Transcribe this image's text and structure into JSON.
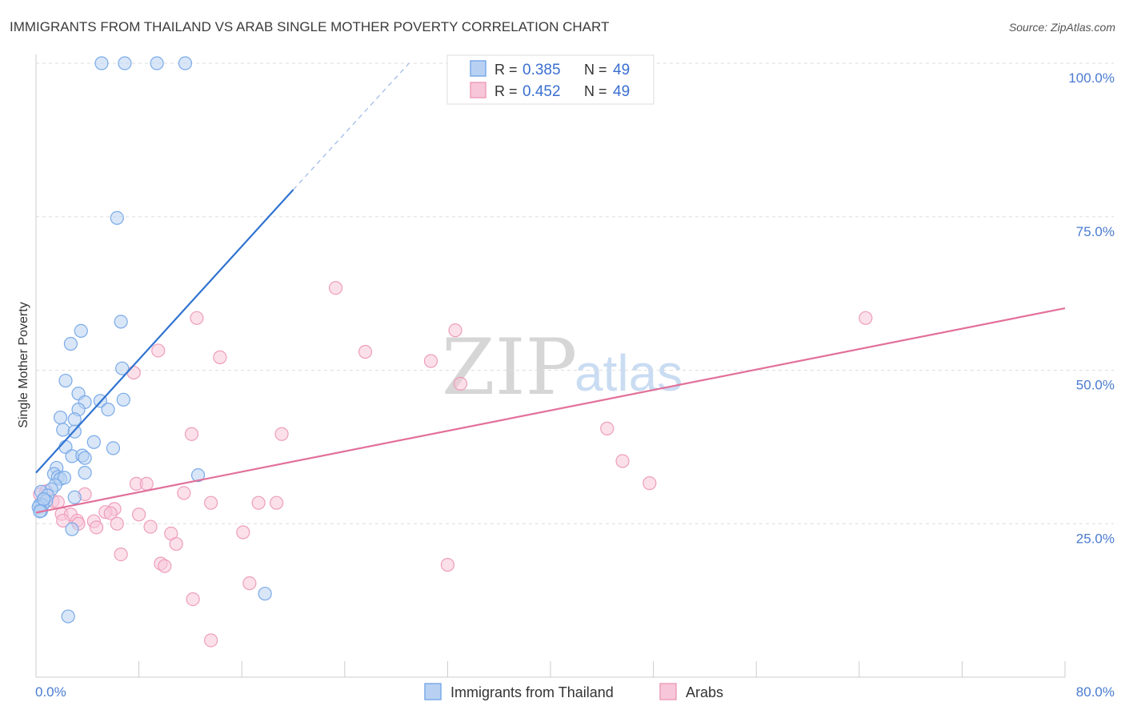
{
  "chart_data": {
    "type": "scatter",
    "title": "IMMIGRANTS FROM THAILAND VS ARAB SINGLE MOTHER POVERTY CORRELATION CHART",
    "source": "Source: ZipAtlas.com",
    "xlabel": "",
    "ylabel": "Single Mother Poverty",
    "xlim": [
      0,
      80
    ],
    "ylim": [
      0,
      100
    ],
    "x_tick_labels": {
      "left": "0.0%",
      "right": "80.0%"
    },
    "y_tick_labels": [
      "100.0%",
      "75.0%",
      "50.0%",
      "25.0%"
    ],
    "y_tick_values": [
      100,
      75,
      50,
      25
    ],
    "watermark": {
      "zip": "ZIP",
      "atlas": "atlas"
    },
    "legend": {
      "r_label": "R = ",
      "n_label": "N = ",
      "entries": [
        {
          "r": "0.385",
          "n": "49"
        },
        {
          "r": "0.452",
          "n": "49"
        }
      ]
    },
    "series": [
      {
        "name": "Immigrants from Thailand",
        "color": "#7aaae8",
        "fill": "#b8d1f3",
        "line_color": "#3073d0",
        "trend": {
          "x0": 0,
          "y0": 33.3,
          "x1": 20,
          "y1": 79.4,
          "dash_x1": 29,
          "dash_y1": 100
        },
        "points": [
          [
            5.1,
            100
          ],
          [
            6.9,
            100
          ],
          [
            9.4,
            100
          ],
          [
            11.6,
            100
          ],
          [
            6.3,
            74.8
          ],
          [
            6.6,
            57.9
          ],
          [
            3.5,
            56.4
          ],
          [
            2.7,
            54.3
          ],
          [
            6.7,
            50.3
          ],
          [
            2.3,
            48.3
          ],
          [
            3.3,
            46.2
          ],
          [
            5.0,
            45.0
          ],
          [
            6.8,
            45.2
          ],
          [
            3.8,
            44.8
          ],
          [
            3.3,
            43.6
          ],
          [
            5.6,
            43.6
          ],
          [
            1.9,
            42.3
          ],
          [
            3.0,
            42.0
          ],
          [
            2.1,
            40.3
          ],
          [
            3.0,
            40.0
          ],
          [
            4.5,
            38.3
          ],
          [
            2.3,
            37.5
          ],
          [
            6.0,
            37.3
          ],
          [
            2.8,
            36.0
          ],
          [
            3.6,
            36.1
          ],
          [
            3.8,
            35.7
          ],
          [
            3.8,
            33.3
          ],
          [
            12.6,
            32.9
          ],
          [
            1.6,
            34.1
          ],
          [
            1.4,
            33.1
          ],
          [
            1.7,
            32.6
          ],
          [
            1.9,
            32.3
          ],
          [
            2.2,
            32.5
          ],
          [
            1.5,
            31.3
          ],
          [
            1.2,
            30.6
          ],
          [
            0.4,
            30.2
          ],
          [
            0.9,
            29.6
          ],
          [
            3.0,
            29.3
          ],
          [
            0.6,
            28.9
          ],
          [
            0.8,
            28.7
          ],
          [
            0.3,
            28.1
          ],
          [
            0.5,
            28.0
          ],
          [
            0.2,
            27.7
          ],
          [
            0.4,
            27.1
          ],
          [
            0.3,
            27.0
          ],
          [
            2.8,
            24.1
          ],
          [
            17.8,
            13.6
          ],
          [
            2.5,
            9.9
          ],
          [
            0.6,
            29.0
          ]
        ]
      },
      {
        "name": "Arabs",
        "color": "#ee9dbb",
        "fill": "#f7c6d8",
        "line_color": "#e2709a",
        "trend": {
          "x0": 0,
          "y0": 26.8,
          "x1": 80,
          "y1": 60.1
        },
        "points": [
          [
            23.3,
            63.4
          ],
          [
            64.5,
            58.5
          ],
          [
            12.5,
            58.5
          ],
          [
            32.6,
            56.5
          ],
          [
            9.5,
            53.2
          ],
          [
            25.6,
            53.0
          ],
          [
            14.3,
            52.1
          ],
          [
            30.7,
            51.5
          ],
          [
            7.6,
            49.6
          ],
          [
            33.0,
            47.8
          ],
          [
            44.4,
            40.5
          ],
          [
            12.1,
            39.6
          ],
          [
            19.1,
            39.6
          ],
          [
            45.6,
            35.2
          ],
          [
            47.7,
            31.6
          ],
          [
            7.8,
            31.5
          ],
          [
            8.6,
            31.5
          ],
          [
            11.5,
            30.0
          ],
          [
            3.8,
            29.8
          ],
          [
            1.3,
            28.7
          ],
          [
            1.7,
            28.5
          ],
          [
            13.6,
            28.4
          ],
          [
            17.3,
            28.4
          ],
          [
            18.7,
            28.4
          ],
          [
            6.1,
            27.4
          ],
          [
            5.4,
            26.9
          ],
          [
            5.8,
            26.7
          ],
          [
            2.0,
            26.6
          ],
          [
            8.0,
            26.5
          ],
          [
            2.7,
            26.5
          ],
          [
            2.1,
            25.5
          ],
          [
            3.2,
            25.5
          ],
          [
            4.5,
            25.4
          ],
          [
            6.3,
            25.0
          ],
          [
            3.3,
            25.0
          ],
          [
            4.7,
            24.4
          ],
          [
            8.9,
            24.5
          ],
          [
            16.1,
            23.6
          ],
          [
            10.5,
            23.4
          ],
          [
            10.9,
            21.7
          ],
          [
            6.6,
            20.0
          ],
          [
            9.7,
            18.5
          ],
          [
            10.0,
            18.1
          ],
          [
            32.0,
            18.3
          ],
          [
            16.6,
            15.3
          ],
          [
            12.2,
            12.7
          ],
          [
            13.6,
            6.0
          ],
          [
            0.3,
            29.8
          ],
          [
            0.8,
            30.3
          ]
        ]
      }
    ]
  }
}
